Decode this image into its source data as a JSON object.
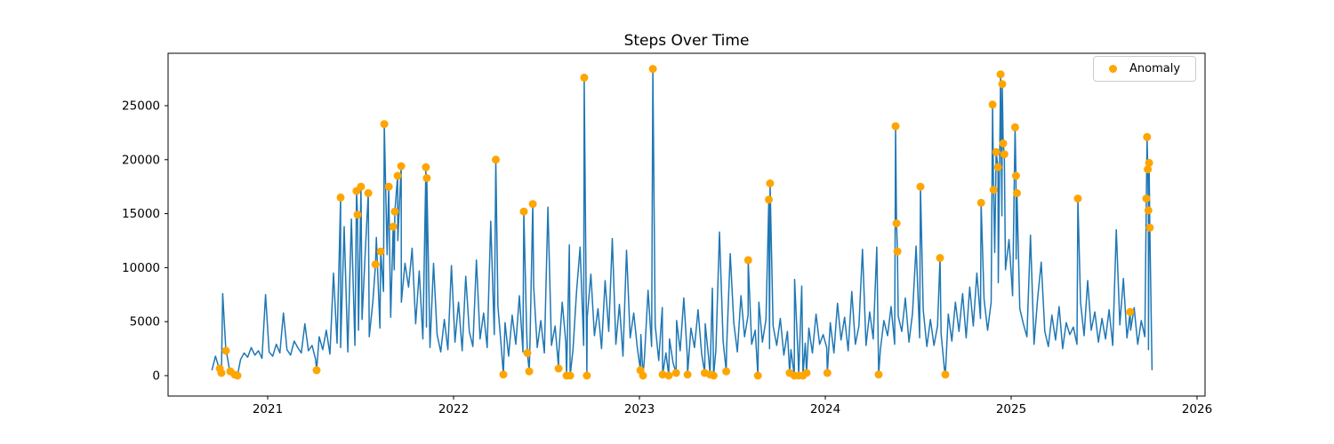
{
  "chart_data": {
    "type": "line+scatter",
    "title": "Steps Over Time",
    "xlabel": "",
    "ylabel": "",
    "legend_label": "Anomaly",
    "legend_position": "upper right",
    "grid": false,
    "colors": {
      "line": "#1f77b4",
      "anomaly": "#ffa500",
      "axis": "#000000",
      "background": "#ffffff"
    },
    "x_ticks": [
      2021,
      2022,
      2023,
      2024,
      2025,
      2026
    ],
    "y_ticks": [
      0,
      5000,
      10000,
      15000,
      20000,
      25000
    ],
    "xlim": [
      2020.464,
      2026.043
    ],
    "ylim": [
      -1890,
      29850
    ],
    "series": {
      "name": "steps",
      "t_start": 2020.7,
      "t_step": 0.01923077,
      "values": [
        500,
        1800,
        660,
        7600,
        2300,
        400,
        80,
        0,
        1500,
        2100,
        1700,
        2600,
        1900,
        2300,
        1600,
        7500,
        2200,
        1800,
        2900,
        2100,
        5800,
        2400,
        1900,
        3200,
        2600,
        2100,
        4800,
        2300,
        2800,
        1500,
        3600,
        2400,
        4200,
        2000,
        9500,
        3000,
        2600,
        13800,
        2200,
        14500,
        2800,
        4200,
        5200,
        12100,
        3600,
        6800,
        12800,
        4400,
        7800,
        11200,
        5400,
        9800,
        12500,
        6800,
        10400,
        8200,
        11800,
        4800,
        9700,
        3400,
        4500,
        2600,
        10400,
        3800,
        2200,
        5200,
        2400,
        10200,
        3100,
        6800,
        2300,
        9200,
        4100,
        2700,
        10700,
        3400,
        5800,
        2600,
        14300,
        3800,
        6400,
        2400,
        4900,
        1800,
        5600,
        2900,
        7400,
        2200,
        4700,
        3300,
        8200,
        2600,
        5100,
        2100,
        15600,
        2800,
        4600,
        1900,
        6800,
        3100,
        12100,
        2400,
        7800,
        11900,
        2800,
        5400,
        9400,
        3700,
        6200,
        2500,
        8800,
        4100,
        12700,
        2900,
        6600,
        1800,
        11600,
        3500,
        5800,
        2600,
        3800,
        1600,
        7900,
        2700,
        4700,
        1400,
        6300,
        2100,
        3400,
        1200,
        5100,
        2300,
        7200,
        1700,
        4400,
        2600,
        6100,
        2000,
        4800,
        1500,
        8100,
        2400,
        13300,
        3200,
        2700,
        11300,
        4900,
        2200,
        7400,
        3600,
        5600,
        2900,
        4200,
        6800,
        3100,
        5200,
        2500,
        4600,
        2800,
        5300,
        1900,
        4100,
        2400,
        8900,
        1600,
        8300,
        3000,
        4400,
        2100,
        5700,
        2900,
        3800,
        2600,
        4900,
        2100,
        6700,
        3300,
        5400,
        2300,
        7800,
        2900,
        4600,
        11700,
        2800,
        5900,
        3400,
        11900,
        2400,
        5100,
        3700,
        6400,
        2900,
        5500,
        4100,
        7200,
        3100,
        5800,
        12000,
        3500,
        6100,
        2700,
        5200,
        2800,
        4600,
        3900,
        300,
        5700,
        3200,
        6800,
        4100,
        7600,
        3500,
        8200,
        4600,
        9500,
        5300,
        7100,
        4200,
        6800,
        11400,
        8600,
        14800,
        9800,
        12600,
        7400,
        10800,
        6200,
        4800,
        3600,
        13000,
        2900,
        7200,
        10500,
        4100,
        2700,
        5600,
        3300,
        6400,
        2500,
        4900,
        3800,
        4500,
        2900,
        6800,
        3700,
        8800,
        4200,
        5900,
        3100,
        5300,
        3400,
        6100,
        2800,
        13500,
        4700,
        9000,
        3500,
        4200,
        6300,
        2900,
        5100,
        3600,
        2400,
        500
      ]
    },
    "anomalies": [
      [
        2020.742,
        660
      ],
      [
        2020.751,
        250
      ],
      [
        2020.775,
        2300
      ],
      [
        2020.799,
        400
      ],
      [
        2020.823,
        80
      ],
      [
        2020.837,
        0
      ],
      [
        2021.263,
        500
      ],
      [
        2021.392,
        16500
      ],
      [
        2021.478,
        17100
      ],
      [
        2021.483,
        14900
      ],
      [
        2021.502,
        17500
      ],
      [
        2021.541,
        16900
      ],
      [
        2021.58,
        10300
      ],
      [
        2021.608,
        11500
      ],
      [
        2021.627,
        23300
      ],
      [
        2021.651,
        17500
      ],
      [
        2021.675,
        13800
      ],
      [
        2021.684,
        15200
      ],
      [
        2021.699,
        18500
      ],
      [
        2021.718,
        19400
      ],
      [
        2021.851,
        19300
      ],
      [
        2021.856,
        18300
      ],
      [
        2022.227,
        20000
      ],
      [
        2022.268,
        100
      ],
      [
        2022.378,
        15200
      ],
      [
        2022.397,
        2100
      ],
      [
        2022.407,
        400
      ],
      [
        2022.426,
        15900
      ],
      [
        2022.565,
        660
      ],
      [
        2022.608,
        0
      ],
      [
        2022.627,
        0
      ],
      [
        2022.703,
        27600
      ],
      [
        2022.717,
        0
      ],
      [
        2023.005,
        500
      ],
      [
        2023.019,
        0
      ],
      [
        2023.072,
        28400
      ],
      [
        2023.125,
        100
      ],
      [
        2023.158,
        0
      ],
      [
        2023.197,
        250
      ],
      [
        2023.259,
        100
      ],
      [
        2023.351,
        250
      ],
      [
        2023.38,
        100
      ],
      [
        2023.399,
        0
      ],
      [
        2023.467,
        400
      ],
      [
        2023.585,
        10700
      ],
      [
        2023.637,
        0
      ],
      [
        2023.696,
        16300
      ],
      [
        2023.703,
        17800
      ],
      [
        2023.808,
        250
      ],
      [
        2023.833,
        0
      ],
      [
        2023.857,
        0
      ],
      [
        2023.88,
        0
      ],
      [
        2023.899,
        250
      ],
      [
        2024.011,
        250
      ],
      [
        2024.287,
        100
      ],
      [
        2024.378,
        23100
      ],
      [
        2024.383,
        14100
      ],
      [
        2024.388,
        11500
      ],
      [
        2024.512,
        17500
      ],
      [
        2024.617,
        10900
      ],
      [
        2024.646,
        100
      ],
      [
        2024.838,
        16000
      ],
      [
        2024.9,
        25100
      ],
      [
        2024.905,
        17200
      ],
      [
        2024.919,
        20700
      ],
      [
        2024.929,
        19300
      ],
      [
        2024.943,
        27900
      ],
      [
        2024.952,
        27000
      ],
      [
        2024.957,
        21500
      ],
      [
        2024.963,
        20500
      ],
      [
        2025.021,
        23000
      ],
      [
        2025.026,
        18500
      ],
      [
        2025.031,
        16900
      ],
      [
        2025.359,
        16400
      ],
      [
        2025.64,
        5900
      ],
      [
        2025.727,
        16400
      ],
      [
        2025.731,
        22100
      ],
      [
        2025.735,
        19100
      ],
      [
        2025.738,
        15300
      ],
      [
        2025.742,
        19700
      ],
      [
        2025.746,
        13700
      ]
    ]
  }
}
